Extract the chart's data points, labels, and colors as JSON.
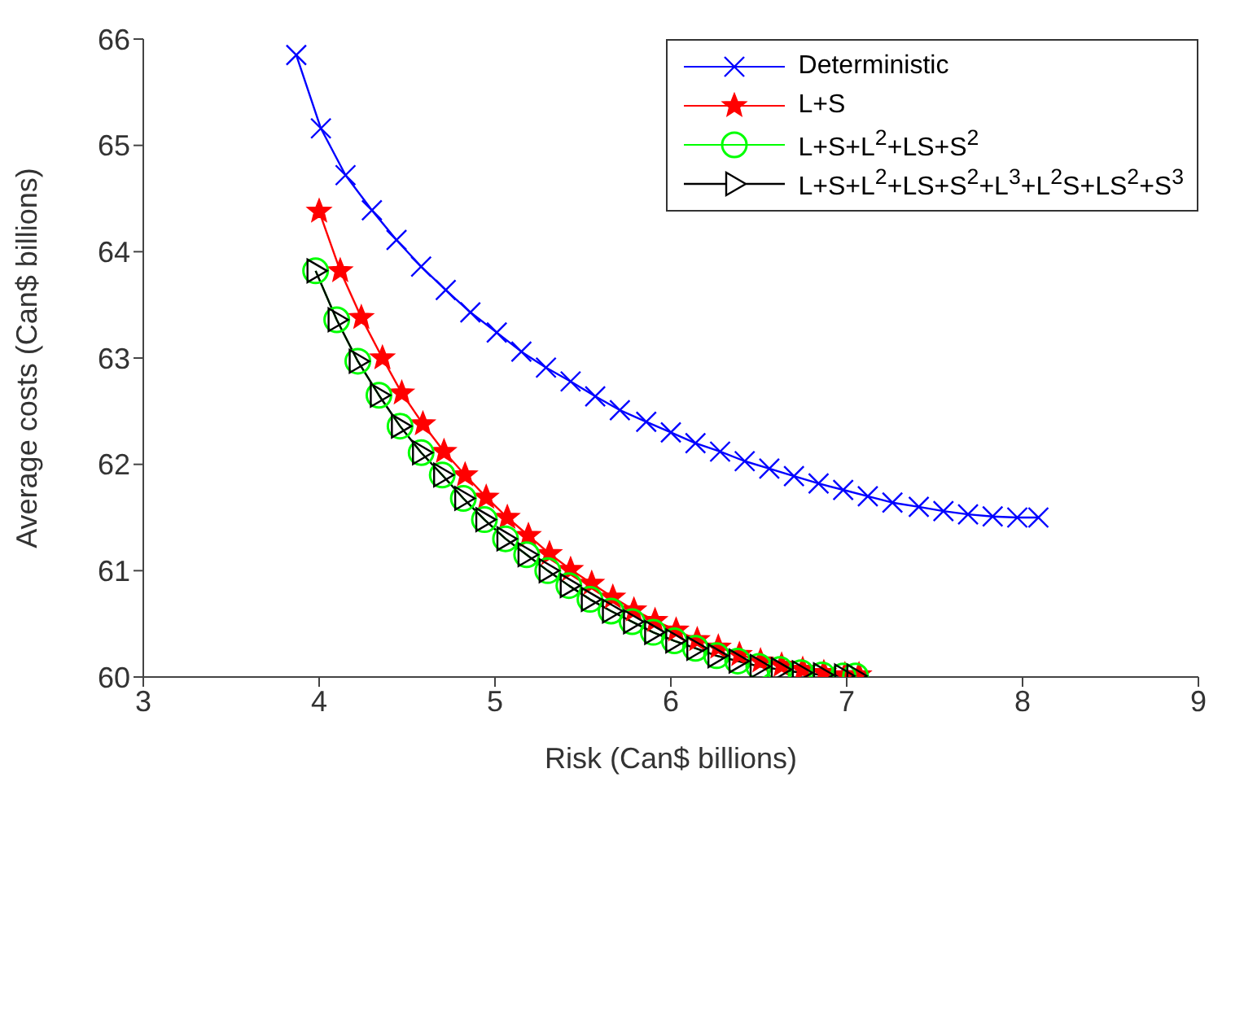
{
  "chart_data": {
    "type": "line",
    "xlabel": "Risk (Can$ billions)",
    "ylabel": "Average costs (Can$ billions)",
    "xlim": [
      3,
      9
    ],
    "xticks": [
      3,
      4,
      5,
      6,
      7,
      8,
      9
    ],
    "ylim": [
      60,
      66
    ],
    "yticks": [
      60,
      61,
      62,
      63,
      64,
      65,
      66
    ],
    "grid": false,
    "legend": "top right",
    "series": [
      {
        "name": "Deterministic",
        "color": "#0000ff",
        "marker": "cross",
        "x": [
          3.87,
          4.01,
          4.15,
          4.3,
          4.44,
          4.58,
          4.72,
          4.86,
          5.01,
          5.15,
          5.29,
          5.43,
          5.57,
          5.71,
          5.86,
          6.0,
          6.14,
          6.28,
          6.42,
          6.56,
          6.7,
          6.84,
          6.98,
          7.12,
          7.26,
          7.41,
          7.55,
          7.69,
          7.83,
          7.97,
          8.09
        ],
        "values": [
          65.85,
          65.16,
          64.72,
          64.39,
          64.11,
          63.86,
          63.64,
          63.43,
          63.24,
          63.06,
          62.91,
          62.78,
          62.64,
          62.51,
          62.4,
          62.3,
          62.2,
          62.12,
          62.03,
          61.96,
          61.89,
          61.82,
          61.76,
          61.7,
          61.64,
          61.6,
          61.56,
          61.53,
          61.51,
          61.5,
          61.5
        ]
      },
      {
        "name": "L+S",
        "color": "#ff0000",
        "marker": "star",
        "x": [
          4.0,
          4.12,
          4.24,
          4.36,
          4.47,
          4.59,
          4.71,
          4.83,
          4.95,
          5.07,
          5.19,
          5.31,
          5.43,
          5.55,
          5.67,
          5.79,
          5.91,
          6.03,
          6.15,
          6.27,
          6.39,
          6.51,
          6.63,
          6.75,
          6.87,
          6.99,
          7.07
        ],
        "values": [
          64.38,
          63.82,
          63.38,
          63.0,
          62.67,
          62.38,
          62.12,
          61.9,
          61.69,
          61.5,
          61.33,
          61.16,
          61.01,
          60.88,
          60.75,
          60.63,
          60.53,
          60.44,
          60.35,
          60.28,
          60.21,
          60.15,
          60.11,
          60.07,
          60.04,
          60.02,
          60.02
        ]
      },
      {
        "name": "L+S+L$^{2}$+LS+S$^{2}$",
        "color": "#00ff00",
        "marker": "circle",
        "x": [
          3.98,
          4.1,
          4.22,
          4.34,
          4.46,
          4.58,
          4.7,
          4.82,
          4.94,
          5.06,
          5.18,
          5.3,
          5.42,
          5.54,
          5.66,
          5.78,
          5.9,
          6.02,
          6.14,
          6.26,
          6.38,
          6.5,
          6.62,
          6.74,
          6.86,
          6.98,
          7.05
        ],
        "values": [
          63.82,
          63.36,
          62.97,
          62.65,
          62.36,
          62.11,
          61.9,
          61.68,
          61.48,
          61.3,
          61.15,
          61.0,
          60.86,
          60.73,
          60.62,
          60.52,
          60.42,
          60.34,
          60.27,
          60.2,
          60.15,
          60.1,
          60.07,
          60.04,
          60.02,
          60.01,
          60.01
        ]
      },
      {
        "name": "L+S+L$^{2}$+LS+S$^{2}$+L$^{3}$+L$^{2}$S+LS$^{2}$+S$^{3}$",
        "color": "#000000",
        "marker": "triangle",
        "x": [
          3.98,
          4.1,
          4.22,
          4.34,
          4.46,
          4.58,
          4.7,
          4.82,
          4.94,
          5.06,
          5.18,
          5.3,
          5.42,
          5.54,
          5.66,
          5.78,
          5.9,
          6.02,
          6.14,
          6.26,
          6.38,
          6.5,
          6.62,
          6.74,
          6.86,
          6.98,
          7.05
        ],
        "values": [
          63.82,
          63.36,
          62.97,
          62.65,
          62.36,
          62.11,
          61.9,
          61.68,
          61.48,
          61.3,
          61.15,
          61.0,
          60.86,
          60.73,
          60.62,
          60.52,
          60.42,
          60.34,
          60.27,
          60.2,
          60.15,
          60.1,
          60.07,
          60.04,
          60.02,
          60.01,
          60.01
        ]
      }
    ]
  }
}
